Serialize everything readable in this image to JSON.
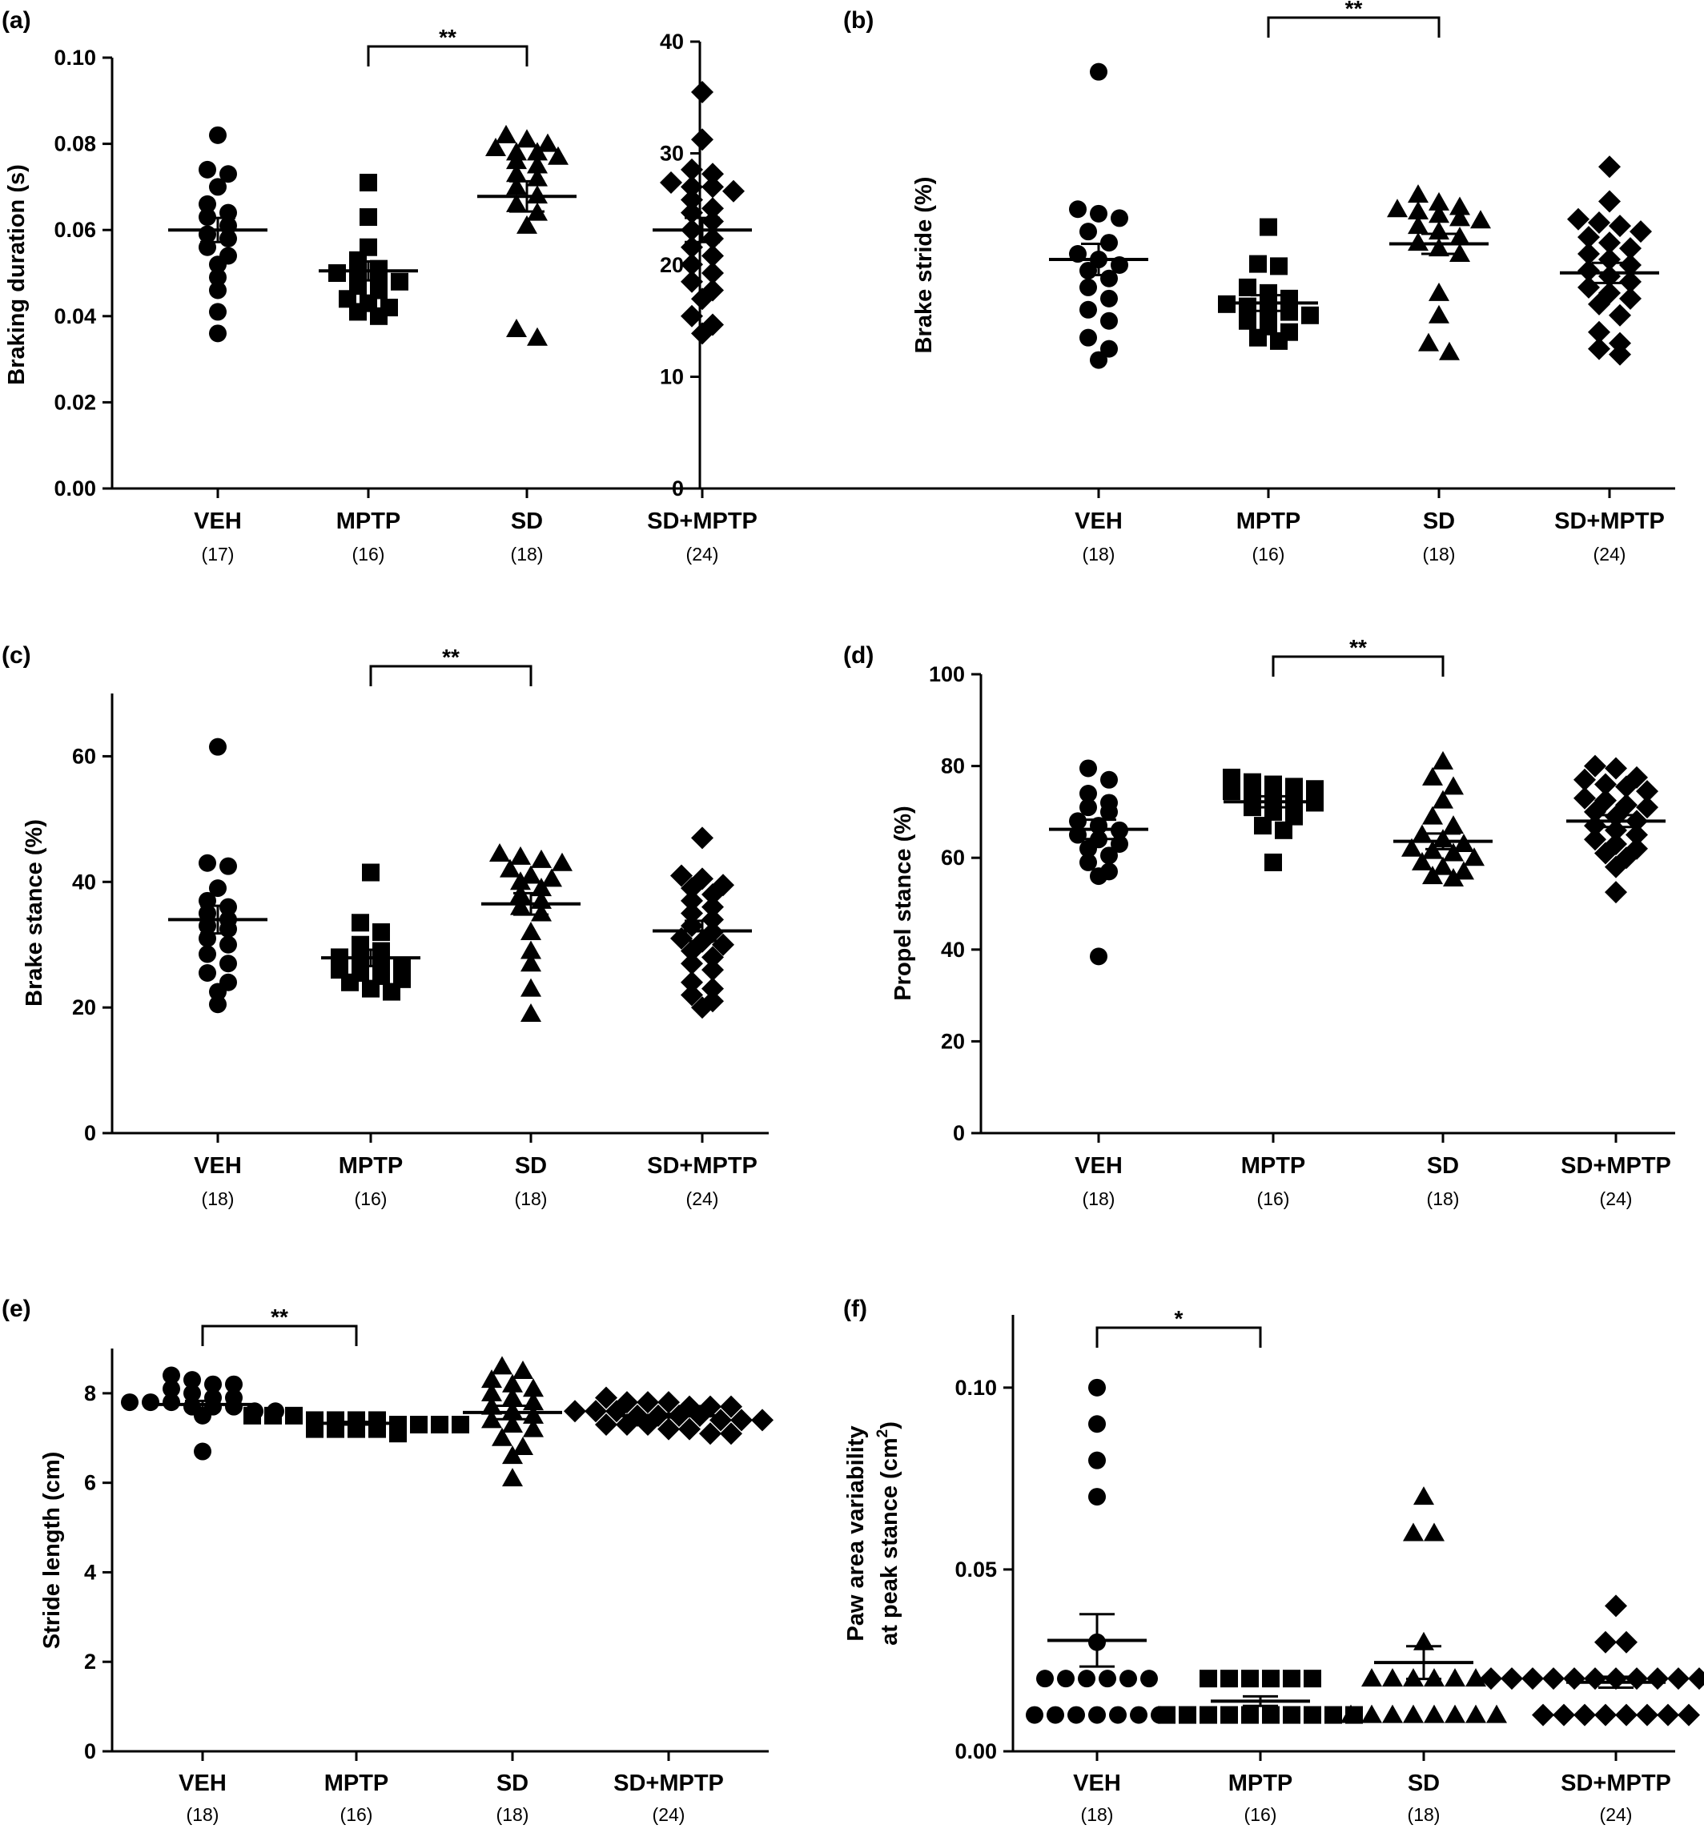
{
  "chart_data": [
    {
      "panel": "(a)",
      "type": "scatter",
      "ylabel": "Braking duration (s)",
      "ylim": [
        0,
        0.1
      ],
      "yticks": [
        0.0,
        0.02,
        0.04,
        0.06,
        0.08,
        0.1
      ],
      "ytick_labels": [
        "0.00",
        "0.02",
        "0.04",
        "0.06",
        "0.08",
        "0.10"
      ],
      "categories": [
        "VEH",
        "MPTP",
        "SD",
        "SD+MPTP"
      ],
      "n_labels": [
        "(17)",
        "(16)",
        "(18)",
        "(24)"
      ],
      "markers": [
        "circle",
        "square",
        "triangle",
        "diamond"
      ],
      "series": [
        {
          "values": [
            0.082,
            0.074,
            0.073,
            0.07,
            0.066,
            0.064,
            0.063,
            0.061,
            0.059,
            0.058,
            0.056,
            0.054,
            0.052,
            0.049,
            0.046,
            0.041,
            0.036
          ],
          "mean": 0.06,
          "sem": 0.0028
        },
        {
          "values": [
            0.071,
            0.063,
            0.056,
            0.053,
            0.051,
            0.05,
            0.05,
            0.049,
            0.048,
            0.047,
            0.046,
            0.044,
            0.043,
            0.042,
            0.041,
            0.04
          ],
          "mean": 0.0505,
          "sem": 0.0022
        },
        {
          "values": [
            0.082,
            0.081,
            0.08,
            0.079,
            0.078,
            0.078,
            0.077,
            0.076,
            0.075,
            0.073,
            0.072,
            0.07,
            0.068,
            0.066,
            0.064,
            0.061,
            0.037,
            0.035
          ],
          "mean": 0.0678,
          "sem": 0.0035
        },
        {
          "values": [
            0.092,
            0.081,
            0.074,
            0.073,
            0.071,
            0.07,
            0.07,
            0.069,
            0.067,
            0.065,
            0.064,
            0.062,
            0.06,
            0.058,
            0.056,
            0.054,
            0.052,
            0.05,
            0.048,
            0.046,
            0.044,
            0.04,
            0.038,
            0.036
          ],
          "mean": 0.06,
          "sem": 0.0028
        }
      ],
      "significance": [
        {
          "from": "MPTP",
          "to": "SD",
          "label": "**"
        }
      ]
    },
    {
      "panel": "(b)",
      "type": "scatter",
      "ylabel": "Brake stride (%)",
      "ylim": [
        0,
        40
      ],
      "yticks": [
        0,
        10,
        20,
        30,
        40
      ],
      "ytick_labels": [
        "0",
        "10",
        "20",
        "30",
        "40"
      ],
      "categories": [
        "VEH",
        "MPTP",
        "SD",
        "SD+MPTP"
      ],
      "n_labels": [
        "(18)",
        "(16)",
        "(18)",
        "(24)"
      ],
      "markers": [
        "circle",
        "square",
        "triangle",
        "diamond"
      ],
      "series": [
        {
          "values": [
            37.3,
            25.0,
            24.6,
            24.2,
            23.0,
            22.0,
            21.0,
            20.5,
            20.0,
            19.5,
            18.8,
            18.0,
            17.0,
            16.0,
            15.0,
            13.5,
            12.5,
            11.5
          ],
          "mean": 20.5,
          "sem": 1.4
        },
        {
          "values": [
            23.4,
            20.1,
            19.9,
            18.0,
            17.5,
            17.0,
            16.5,
            16.3,
            16.0,
            15.8,
            15.5,
            15.0,
            14.5,
            14.0,
            13.5,
            13.2
          ],
          "mean": 16.6,
          "sem": 0.7
        },
        {
          "values": [
            26.3,
            25.6,
            25.2,
            25.0,
            24.8,
            24.5,
            24.2,
            24.0,
            23.5,
            23.0,
            22.5,
            22.0,
            21.5,
            21.0,
            17.5,
            15.5,
            13.0,
            12.2
          ],
          "mean": 21.9,
          "sem": 0.9
        },
        {
          "values": [
            28.8,
            25.7,
            24.1,
            23.8,
            23.5,
            23.0,
            22.5,
            22.0,
            21.5,
            21.0,
            20.5,
            20.0,
            19.5,
            19.0,
            18.5,
            18.0,
            17.5,
            17.0,
            16.5,
            15.5,
            14.0,
            13.0,
            12.5,
            12.0
          ],
          "mean": 19.3,
          "sem": 0.9
        }
      ],
      "significance": [
        {
          "from": "MPTP",
          "to": "SD",
          "label": "**"
        }
      ]
    },
    {
      "panel": "(c)",
      "type": "scatter",
      "ylabel": "Brake stance (%)",
      "ylim": [
        0,
        70
      ],
      "yticks": [
        0,
        20,
        40,
        60
      ],
      "ytick_labels": [
        "0",
        "20",
        "40",
        "60"
      ],
      "categories": [
        "VEH",
        "MPTP",
        "SD",
        "SD+MPTP"
      ],
      "n_labels": [
        "(18)",
        "(16)",
        "(18)",
        "(24)"
      ],
      "markers": [
        "circle",
        "square",
        "triangle",
        "diamond"
      ],
      "series": [
        {
          "values": [
            61.5,
            43.0,
            42.5,
            39.0,
            37.0,
            36.0,
            35.0,
            34.0,
            33.0,
            32.5,
            31.0,
            30.0,
            28.5,
            27.0,
            25.5,
            24.0,
            22.5,
            20.5
          ],
          "mean": 34.0,
          "sem": 2.2
        },
        {
          "values": [
            41.5,
            33.5,
            32.0,
            30.0,
            29.0,
            28.0,
            27.5,
            27.0,
            26.5,
            26.0,
            25.5,
            25.0,
            24.5,
            24.0,
            23.0,
            22.5
          ],
          "mean": 27.9,
          "sem": 1.3
        },
        {
          "values": [
            44.5,
            44.0,
            43.5,
            43.0,
            42.0,
            41.0,
            40.5,
            40.0,
            39.0,
            38.0,
            37.0,
            36.0,
            35.0,
            32.0,
            29.0,
            27.0,
            23.0,
            19.0
          ],
          "mean": 36.5,
          "sem": 1.7
        },
        {
          "values": [
            47.0,
            41.0,
            40.5,
            39.5,
            39.0,
            38.0,
            37.0,
            36.0,
            35.0,
            34.0,
            33.0,
            32.0,
            31.0,
            30.5,
            30.0,
            29.0,
            28.0,
            27.0,
            26.0,
            24.0,
            23.0,
            22.0,
            21.0,
            20.0
          ],
          "mean": 32.2,
          "sem": 1.6
        }
      ],
      "significance": [
        {
          "from": "MPTP",
          "to": "SD",
          "label": "**"
        }
      ]
    },
    {
      "panel": "(d)",
      "type": "scatter",
      "ylabel": "Propel stance (%)",
      "ylim": [
        0,
        100
      ],
      "yticks": [
        0,
        20,
        40,
        60,
        80,
        100
      ],
      "ytick_labels": [
        "0",
        "20",
        "40",
        "60",
        "80",
        "100"
      ],
      "categories": [
        "VEH",
        "MPTP",
        "SD",
        "SD+MPTP"
      ],
      "n_labels": [
        "(18)",
        "(16)",
        "(18)",
        "(24)"
      ],
      "markers": [
        "circle",
        "square",
        "triangle",
        "diamond"
      ],
      "series": [
        {
          "values": [
            79.5,
            77.0,
            74.0,
            72.0,
            71.0,
            70.0,
            68.0,
            67.0,
            66.0,
            65.0,
            64.0,
            63.0,
            62.0,
            60.5,
            59.0,
            57.0,
            56.0,
            38.5
          ],
          "mean": 66.2,
          "sem": 2.1
        },
        {
          "values": [
            77.5,
            76.5,
            76.0,
            75.5,
            75.0,
            74.5,
            74.0,
            73.0,
            72.5,
            72.0,
            71.0,
            70.0,
            69.0,
            67.0,
            66.0,
            59.0
          ],
          "mean": 72.2,
          "sem": 1.2
        },
        {
          "values": [
            81.0,
            77.5,
            75.5,
            72.5,
            69.0,
            67.0,
            65.0,
            64.0,
            63.0,
            62.0,
            61.5,
            61.0,
            60.0,
            59.0,
            58.0,
            57.0,
            56.0,
            55.5
          ],
          "mean": 63.6,
          "sem": 1.7
        },
        {
          "values": [
            80.0,
            79.5,
            77.5,
            77.0,
            76.0,
            75.5,
            74.5,
            73.0,
            72.5,
            71.5,
            71.0,
            70.0,
            69.0,
            68.0,
            67.0,
            66.0,
            65.0,
            64.0,
            63.0,
            62.0,
            61.0,
            60.0,
            58.0,
            52.5
          ],
          "mean": 68.0,
          "sem": 1.3
        }
      ],
      "significance": [
        {
          "from": "MPTP",
          "to": "SD",
          "label": "**"
        }
      ]
    },
    {
      "panel": "(e)",
      "type": "scatter",
      "ylabel": "Stride length (cm)",
      "ylim": [
        0,
        9
      ],
      "yticks": [
        0,
        2,
        4,
        6,
        8
      ],
      "ytick_labels": [
        "0",
        "2",
        "4",
        "6",
        "8"
      ],
      "categories": [
        "VEH",
        "MPTP",
        "SD",
        "SD+MPTP"
      ],
      "n_labels": [
        "(18)",
        "(16)",
        "(18)",
        "(24)"
      ],
      "markers": [
        "circle",
        "square",
        "triangle",
        "diamond"
      ],
      "series": [
        {
          "values": [
            8.4,
            8.3,
            8.2,
            8.2,
            8.1,
            8.0,
            7.9,
            7.9,
            7.8,
            7.8,
            7.8,
            7.7,
            7.7,
            7.7,
            7.6,
            7.6,
            7.5,
            6.7
          ],
          "mean": 7.75,
          "sem": 0.08
        },
        {
          "values": [
            7.5,
            7.5,
            7.5,
            7.4,
            7.4,
            7.4,
            7.4,
            7.3,
            7.3,
            7.3,
            7.3,
            7.2,
            7.2,
            7.2,
            7.2,
            7.1
          ],
          "mean": 7.33,
          "sem": 0.03
        },
        {
          "values": [
            8.6,
            8.5,
            8.3,
            8.2,
            8.1,
            8.0,
            7.9,
            7.8,
            7.7,
            7.6,
            7.5,
            7.4,
            7.3,
            7.2,
            7.0,
            6.8,
            6.6,
            6.1
          ],
          "mean": 7.57,
          "sem": 0.15
        },
        {
          "values": [
            7.9,
            7.8,
            7.8,
            7.8,
            7.7,
            7.7,
            7.7,
            7.6,
            7.6,
            7.6,
            7.5,
            7.5,
            7.5,
            7.5,
            7.4,
            7.4,
            7.4,
            7.3,
            7.3,
            7.3,
            7.2,
            7.2,
            7.1,
            7.1
          ],
          "mean": 7.5,
          "sem": 0.04
        }
      ],
      "significance": [
        {
          "from": "VEH",
          "to": "MPTP",
          "label": "**"
        }
      ]
    },
    {
      "panel": "(f)",
      "type": "scatter",
      "ylabel_lines": [
        "Paw area variability",
        "at peak stance (cm"
      ],
      "ylabel_sup": "2",
      "ylabel_close": ")",
      "ylim": [
        0,
        0.12
      ],
      "yticks": [
        0.0,
        0.05,
        0.1
      ],
      "ytick_labels": [
        "0.00",
        "0.05",
        "0.10"
      ],
      "categories": [
        "VEH",
        "MPTP",
        "SD",
        "SD+MPTP"
      ],
      "n_labels": [
        "(18)",
        "(16)",
        "(18)",
        "(24)"
      ],
      "markers": [
        "circle",
        "square",
        "triangle",
        "diamond"
      ],
      "series": [
        {
          "values": [
            0.1,
            0.09,
            0.08,
            0.07,
            0.03,
            0.02,
            0.02,
            0.02,
            0.02,
            0.02,
            0.02,
            0.01,
            0.01,
            0.01,
            0.01,
            0.01,
            0.01,
            0.01
          ],
          "mean": 0.0305,
          "sem": 0.0072
        },
        {
          "values": [
            0.02,
            0.02,
            0.02,
            0.02,
            0.02,
            0.02,
            0.01,
            0.01,
            0.01,
            0.01,
            0.01,
            0.01,
            0.01,
            0.01,
            0.01,
            0.01
          ],
          "mean": 0.0138,
          "sem": 0.0013
        },
        {
          "values": [
            0.07,
            0.06,
            0.06,
            0.03,
            0.02,
            0.02,
            0.02,
            0.02,
            0.02,
            0.02,
            0.01,
            0.01,
            0.01,
            0.01,
            0.01,
            0.01,
            0.01,
            0.01
          ],
          "mean": 0.0244,
          "sem": 0.0045
        },
        {
          "values": [
            0.04,
            0.03,
            0.03,
            0.02,
            0.02,
            0.02,
            0.02,
            0.02,
            0.02,
            0.02,
            0.02,
            0.02,
            0.02,
            0.02,
            0.02,
            0.02,
            0.01,
            0.01,
            0.01,
            0.01,
            0.01,
            0.01,
            0.01,
            0.01
          ],
          "mean": 0.019,
          "sem": 0.0015
        }
      ],
      "significance": [
        {
          "from": "VEH",
          "to": "MPTP",
          "label": "*"
        }
      ]
    }
  ]
}
